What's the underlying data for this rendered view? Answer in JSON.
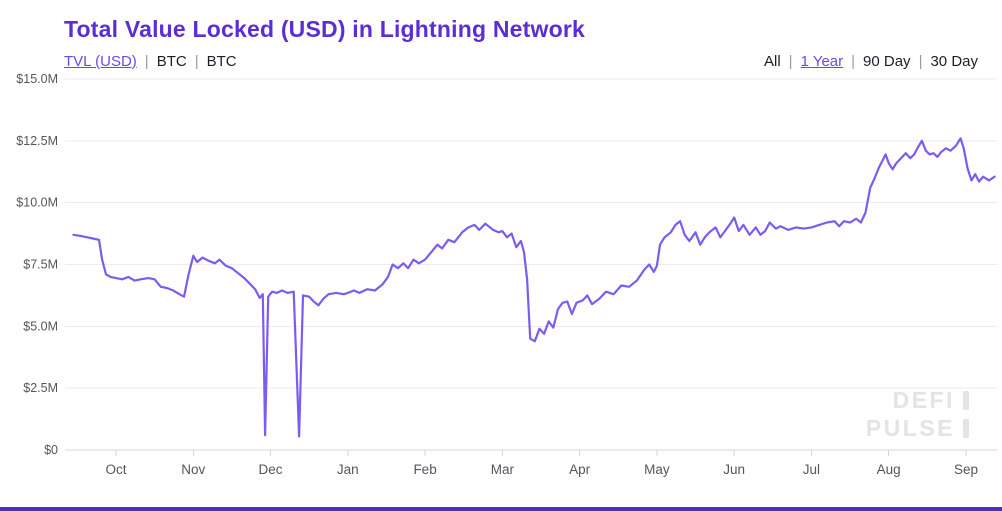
{
  "ui": {
    "sep": "|"
  },
  "header": {
    "title": "Total Value Locked (USD) in Lightning Network",
    "series_links": [
      {
        "label": "TVL (USD)",
        "active": true
      },
      {
        "label": "BTC",
        "active": false
      },
      {
        "label": "BTC",
        "active": false
      }
    ],
    "range_links": [
      {
        "label": "All",
        "active": false
      },
      {
        "label": "1 Year",
        "active": true
      },
      {
        "label": "90 Day",
        "active": false
      },
      {
        "label": "30 Day",
        "active": false
      }
    ]
  },
  "watermark": {
    "line1": "DEFI",
    "line2": "PULSE"
  },
  "colors": {
    "title": "#5c2dd5",
    "line": "#7b5cf0",
    "link_active": "#6d48e8",
    "grid": "#ebebf0",
    "axis": "#d6d6de",
    "watermark": "#e3e3e8",
    "bottom_bar": "#4a30c4"
  },
  "chart_data": {
    "type": "line",
    "title": "Total Value Locked (USD) in Lightning Network",
    "xlabel": "",
    "ylabel": "",
    "unit": "USD (millions)",
    "grid": "horizontal",
    "legend": "none",
    "x_axis": {
      "labels": [
        "Oct",
        "Nov",
        "Dec",
        "Jan",
        "Feb",
        "Mar",
        "Apr",
        "May",
        "Jun",
        "Jul",
        "Aug",
        "Sep"
      ],
      "note_visible_range_months": [
        0.45,
        12.37
      ]
    },
    "y_axis": {
      "tick_labels": [
        "$0",
        "$2.5M",
        "$5.0M",
        "$7.5M",
        "$10.0M",
        "$12.5M",
        "$15.0M"
      ],
      "tick_values_m": [
        0,
        2.5,
        5,
        7.5,
        10,
        12.5,
        15
      ],
      "min_m": 0,
      "max_m": 15
    },
    "series": [
      {
        "name": "TVL (USD)",
        "color": "#7b5cf0",
        "points_month_vs_musd": [
          [
            0.45,
            8.7
          ],
          [
            0.55,
            8.65
          ],
          [
            0.63,
            8.6
          ],
          [
            0.7,
            8.55
          ],
          [
            0.78,
            8.5
          ],
          [
            0.82,
            7.7
          ],
          [
            0.87,
            7.1
          ],
          [
            0.93,
            7.0
          ],
          [
            1.0,
            6.95
          ],
          [
            1.08,
            6.9
          ],
          [
            1.16,
            7.0
          ],
          [
            1.24,
            6.85
          ],
          [
            1.32,
            6.9
          ],
          [
            1.42,
            6.95
          ],
          [
            1.5,
            6.9
          ],
          [
            1.58,
            6.6
          ],
          [
            1.66,
            6.55
          ],
          [
            1.74,
            6.45
          ],
          [
            1.82,
            6.3
          ],
          [
            1.88,
            6.2
          ],
          [
            1.94,
            7.1
          ],
          [
            2.0,
            7.85
          ],
          [
            2.05,
            7.6
          ],
          [
            2.12,
            7.78
          ],
          [
            2.2,
            7.65
          ],
          [
            2.28,
            7.55
          ],
          [
            2.34,
            7.7
          ],
          [
            2.42,
            7.45
          ],
          [
            2.5,
            7.35
          ],
          [
            2.58,
            7.15
          ],
          [
            2.66,
            6.95
          ],
          [
            2.74,
            6.7
          ],
          [
            2.8,
            6.5
          ],
          [
            2.86,
            6.15
          ],
          [
            2.9,
            6.3
          ],
          [
            2.93,
            0.6
          ],
          [
            2.97,
            6.2
          ],
          [
            3.02,
            6.4
          ],
          [
            3.08,
            6.35
          ],
          [
            3.15,
            6.45
          ],
          [
            3.22,
            6.35
          ],
          [
            3.3,
            6.4
          ],
          [
            3.37,
            0.55
          ],
          [
            3.42,
            6.25
          ],
          [
            3.5,
            6.2
          ],
          [
            3.56,
            6.0
          ],
          [
            3.62,
            5.85
          ],
          [
            3.68,
            6.1
          ],
          [
            3.75,
            6.3
          ],
          [
            3.85,
            6.35
          ],
          [
            3.95,
            6.3
          ],
          [
            4.0,
            6.35
          ],
          [
            4.08,
            6.45
          ],
          [
            4.15,
            6.35
          ],
          [
            4.25,
            6.5
          ],
          [
            4.35,
            6.45
          ],
          [
            4.45,
            6.7
          ],
          [
            4.52,
            7.0
          ],
          [
            4.58,
            7.5
          ],
          [
            4.65,
            7.35
          ],
          [
            4.72,
            7.55
          ],
          [
            4.78,
            7.35
          ],
          [
            4.85,
            7.7
          ],
          [
            4.92,
            7.55
          ],
          [
            5.0,
            7.7
          ],
          [
            5.08,
            8.0
          ],
          [
            5.16,
            8.3
          ],
          [
            5.22,
            8.15
          ],
          [
            5.3,
            8.5
          ],
          [
            5.38,
            8.4
          ],
          [
            5.48,
            8.8
          ],
          [
            5.56,
            9.0
          ],
          [
            5.64,
            9.1
          ],
          [
            5.7,
            8.9
          ],
          [
            5.78,
            9.15
          ],
          [
            5.88,
            8.9
          ],
          [
            5.95,
            8.8
          ],
          [
            6.0,
            8.85
          ],
          [
            6.06,
            8.6
          ],
          [
            6.12,
            8.75
          ],
          [
            6.18,
            8.2
          ],
          [
            6.24,
            8.45
          ],
          [
            6.28,
            8.0
          ],
          [
            6.32,
            6.9
          ],
          [
            6.36,
            4.5
          ],
          [
            6.42,
            4.4
          ],
          [
            6.48,
            4.9
          ],
          [
            6.54,
            4.7
          ],
          [
            6.6,
            5.2
          ],
          [
            6.66,
            4.95
          ],
          [
            6.72,
            5.7
          ],
          [
            6.78,
            5.95
          ],
          [
            6.84,
            6.0
          ],
          [
            6.9,
            5.5
          ],
          [
            6.96,
            5.95
          ],
          [
            7.04,
            6.05
          ],
          [
            7.1,
            6.25
          ],
          [
            7.16,
            5.9
          ],
          [
            7.25,
            6.1
          ],
          [
            7.34,
            6.4
          ],
          [
            7.44,
            6.3
          ],
          [
            7.54,
            6.65
          ],
          [
            7.64,
            6.6
          ],
          [
            7.74,
            6.85
          ],
          [
            7.84,
            7.3
          ],
          [
            7.9,
            7.5
          ],
          [
            7.96,
            7.2
          ],
          [
            8.0,
            7.45
          ],
          [
            8.04,
            8.3
          ],
          [
            8.1,
            8.6
          ],
          [
            8.18,
            8.8
          ],
          [
            8.24,
            9.1
          ],
          [
            8.3,
            9.25
          ],
          [
            8.36,
            8.7
          ],
          [
            8.42,
            8.45
          ],
          [
            8.5,
            8.8
          ],
          [
            8.56,
            8.3
          ],
          [
            8.62,
            8.6
          ],
          [
            8.68,
            8.8
          ],
          [
            8.76,
            9.0
          ],
          [
            8.82,
            8.6
          ],
          [
            8.88,
            8.85
          ],
          [
            8.95,
            9.15
          ],
          [
            9.0,
            9.4
          ],
          [
            9.06,
            8.85
          ],
          [
            9.12,
            9.1
          ],
          [
            9.2,
            8.7
          ],
          [
            9.28,
            9.0
          ],
          [
            9.34,
            8.7
          ],
          [
            9.4,
            8.85
          ],
          [
            9.46,
            9.2
          ],
          [
            9.54,
            8.95
          ],
          [
            9.6,
            9.05
          ],
          [
            9.7,
            8.9
          ],
          [
            9.8,
            9.0
          ],
          [
            9.9,
            8.95
          ],
          [
            10.0,
            9.0
          ],
          [
            10.1,
            9.1
          ],
          [
            10.2,
            9.2
          ],
          [
            10.3,
            9.25
          ],
          [
            10.36,
            9.05
          ],
          [
            10.42,
            9.25
          ],
          [
            10.5,
            9.2
          ],
          [
            10.58,
            9.35
          ],
          [
            10.64,
            9.2
          ],
          [
            10.7,
            9.6
          ],
          [
            10.76,
            10.6
          ],
          [
            10.82,
            11.0
          ],
          [
            10.87,
            11.4
          ],
          [
            10.92,
            11.7
          ],
          [
            10.96,
            11.95
          ],
          [
            11.0,
            11.6
          ],
          [
            11.05,
            11.35
          ],
          [
            11.1,
            11.6
          ],
          [
            11.16,
            11.8
          ],
          [
            11.22,
            12.0
          ],
          [
            11.28,
            11.8
          ],
          [
            11.33,
            11.95
          ],
          [
            11.38,
            12.25
          ],
          [
            11.43,
            12.5
          ],
          [
            11.48,
            12.1
          ],
          [
            11.53,
            11.95
          ],
          [
            11.58,
            12.0
          ],
          [
            11.63,
            11.85
          ],
          [
            11.68,
            12.05
          ],
          [
            11.74,
            12.2
          ],
          [
            11.8,
            12.1
          ],
          [
            11.87,
            12.3
          ],
          [
            11.93,
            12.6
          ],
          [
            11.97,
            12.2
          ],
          [
            12.02,
            11.4
          ],
          [
            12.07,
            10.9
          ],
          [
            12.12,
            11.15
          ],
          [
            12.17,
            10.85
          ],
          [
            12.22,
            11.05
          ],
          [
            12.3,
            10.9
          ],
          [
            12.37,
            11.05
          ]
        ]
      }
    ]
  }
}
